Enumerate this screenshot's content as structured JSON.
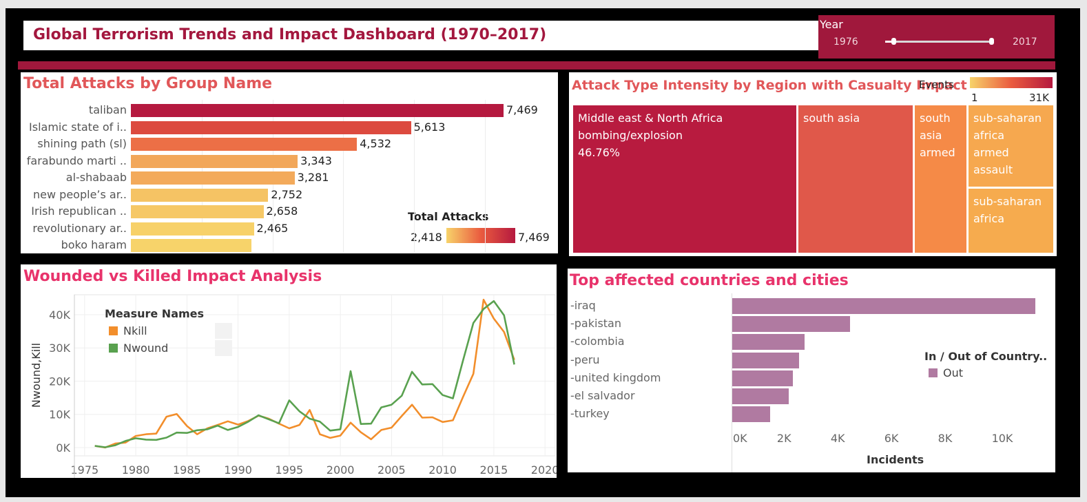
{
  "dashboard_title": "Global Terrorism Trends and Impact Dashboard (1970–2017)",
  "year_filter": {
    "label": "Year",
    "min": "1976",
    "max": "2017"
  },
  "colors": {
    "brand": "#a0183c",
    "grad_low": "#f7d36a",
    "grad_mid": "#ea5b3f",
    "grad_high": "#b5193f",
    "kill": "#f28e2b",
    "wound": "#59a14f",
    "country_bar": "#b07aa1"
  },
  "chart_data": [
    {
      "id": "groups",
      "type": "bar",
      "title": "Total Attacks by Group Name",
      "categories": [
        "taliban",
        "Islamic state of i..",
        "shining path (sl)",
        "farabundo marti ..",
        "al-shabaab",
        "new people’s ar..",
        "Irish republican ..",
        "revolutionary ar..",
        "boko haram"
      ],
      "values": [
        7469,
        5613,
        4532,
        3343,
        3281,
        2752,
        2658,
        2465,
        2418
      ],
      "value_labels": [
        "7,469",
        "5,613",
        "4,532",
        "3,343",
        "3,281",
        "2,752",
        "2,658",
        "2,465",
        ""
      ],
      "legend": {
        "title": "Total Attacks",
        "min_label": "2,418",
        "max_label": "7,469"
      }
    },
    {
      "id": "treemap",
      "type": "treemap",
      "title": "Attack Type Intensity by Region with Casualty Impact",
      "legend": {
        "title": "Events",
        "min_label": "1",
        "max_label": "31K"
      },
      "cells": [
        {
          "label": "Middle east & North Africa\nbombing/explosion\n46.76%",
          "value": 46.76
        },
        {
          "label": "south asia",
          "value": 24.5
        },
        {
          "label": "south\nasia\narmed",
          "value": 10.6
        },
        {
          "label": "sub-saharan\nafrica\narmed\nassault",
          "value": 9.7
        },
        {
          "label": "sub-saharan\nafrica",
          "value": 7.9
        }
      ]
    },
    {
      "id": "impact",
      "type": "line",
      "title": "Wounded vs Killed Impact Analysis",
      "ylabel": "Nwound,Kill",
      "xlim": [
        1974,
        2021
      ],
      "ylim": [
        -2500,
        46000
      ],
      "xticks": [
        1975,
        1980,
        1985,
        1990,
        1995,
        2000,
        2005,
        2010,
        2015,
        2020
      ],
      "yticks": [
        0,
        10000,
        20000,
        30000,
        40000
      ],
      "ytick_labels": [
        "0K",
        "10K",
        "20K",
        "30K",
        "40K"
      ],
      "legend": {
        "title": "Measure Names"
      },
      "x": [
        1976,
        1977,
        1978,
        1979,
        1980,
        1981,
        1982,
        1983,
        1984,
        1985,
        1986,
        1987,
        1988,
        1989,
        1990,
        1991,
        1992,
        1993,
        1994,
        1995,
        1996,
        1997,
        1998,
        1999,
        2000,
        2001,
        2002,
        2003,
        2004,
        2005,
        2006,
        2007,
        2008,
        2009,
        2010,
        2011,
        2012,
        2013,
        2014,
        2015,
        2016,
        2017
      ],
      "series": [
        {
          "name": "Nkill",
          "values": [
            500,
            0,
            1200,
            1500,
            3500,
            4000,
            4200,
            9300,
            10100,
            6500,
            4000,
            5800,
            6800,
            7900,
            6900,
            8000,
            9600,
            8700,
            7200,
            5800,
            6800,
            11300,
            4000,
            2900,
            3600,
            7500,
            4600,
            2500,
            5300,
            6000,
            9500,
            12900,
            9000,
            9100,
            7700,
            8200,
            15300,
            22200,
            44500,
            38800,
            34800,
            26400
          ]
        },
        {
          "name": "Nwound",
          "values": [
            500,
            100,
            700,
            2000,
            2800,
            2400,
            2300,
            3000,
            4500,
            4400,
            5200,
            5500,
            6600,
            5300,
            6200,
            7800,
            9700,
            8500,
            7300,
            14200,
            10900,
            8700,
            7800,
            5100,
            5500,
            23000,
            7100,
            7200,
            12100,
            12900,
            15600,
            22800,
            19000,
            19100,
            15800,
            14800,
            26300,
            37500,
            41700,
            44100,
            39800,
            25000
          ]
        }
      ]
    },
    {
      "id": "countries",
      "type": "bar",
      "title": "Top affected countries and cities",
      "categories": [
        "-iraq",
        "-pakistan",
        "-colombia",
        "-peru",
        "-united kingdom",
        "-el salvador",
        "-turkey"
      ],
      "values": [
        11300,
        4400,
        2700,
        2500,
        2250,
        2100,
        1400
      ],
      "xlim": [
        0,
        11500
      ],
      "xticks": [
        0,
        2000,
        4000,
        6000,
        8000,
        10000
      ],
      "xtick_labels": [
        "0K",
        "2K",
        "4K",
        "6K",
        "8K",
        "10K"
      ],
      "xlabel": "Incidents",
      "legend": {
        "title": "In / Out of Country..",
        "entry": "Out"
      }
    }
  ]
}
